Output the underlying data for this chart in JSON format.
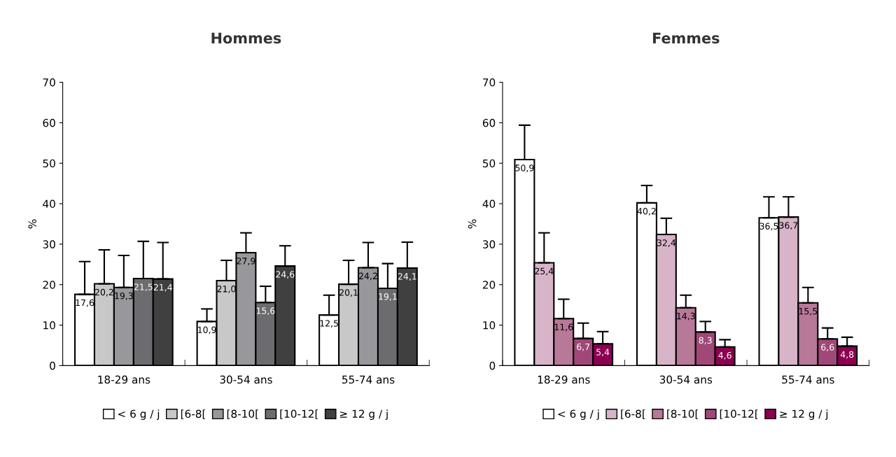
{
  "chart_data": [
    {
      "type": "bar",
      "title": "Hommes",
      "ylabel": "%",
      "categories": [
        "18-29 ans",
        "30-54 ans",
        "55-74 ans"
      ],
      "ylim": [
        0,
        70
      ],
      "yticks": [
        0,
        10,
        20,
        30,
        40,
        50,
        60,
        70
      ],
      "grid": false,
      "legend": "bottom",
      "series": [
        {
          "name": "< 6 g / j",
          "color": "#ffffff",
          "values": [
            17.6,
            10.9,
            12.5
          ],
          "errors": [
            [
              17.6,
              25.7
            ],
            [
              10.9,
              14.0
            ],
            [
              12.5,
              17.4
            ]
          ],
          "value_labels": [
            "17,6",
            "10,9",
            "12,5"
          ]
        },
        {
          "name": "[6-8[",
          "color": "#c8c8c8",
          "values": [
            20.2,
            21.0,
            20.1
          ],
          "errors": [
            [
              20.2,
              28.6
            ],
            [
              21.0,
              26.0
            ],
            [
              20.1,
              26.0
            ]
          ],
          "value_labels": [
            "20,2",
            "21,0",
            "20,1"
          ]
        },
        {
          "name": "[8-10[",
          "color": "#98989c",
          "values": [
            19.3,
            27.9,
            24.2
          ],
          "errors": [
            [
              19.3,
              27.2
            ],
            [
              27.9,
              32.8
            ],
            [
              24.2,
              30.4
            ]
          ],
          "value_labels": [
            "19,3",
            "27,9",
            "24,2"
          ]
        },
        {
          "name": "[10-12[",
          "color": "#6c6c70",
          "values": [
            21.5,
            15.6,
            19.1
          ],
          "errors": [
            [
              21.5,
              30.7
            ],
            [
              15.6,
              19.6
            ],
            [
              19.1,
              25.2
            ]
          ],
          "value_labels": [
            "21,5",
            "15,6",
            "19,1"
          ]
        },
        {
          "name": "≥ 12 g / j",
          "color": "#404040",
          "values": [
            21.4,
            24.6,
            24.1
          ],
          "errors": [
            [
              21.4,
              30.4
            ],
            [
              24.6,
              29.6
            ],
            [
              24.1,
              30.5
            ]
          ],
          "value_labels": [
            "21,4",
            "24,6",
            "24,1"
          ]
        }
      ]
    },
    {
      "type": "bar",
      "title": "Femmes",
      "ylabel": "%",
      "categories": [
        "18-29 ans",
        "30-54 ans",
        "55-74 ans"
      ],
      "ylim": [
        0,
        70
      ],
      "yticks": [
        0,
        10,
        20,
        30,
        40,
        50,
        60,
        70
      ],
      "grid": false,
      "legend": "bottom",
      "series": [
        {
          "name": "< 6 g / j",
          "color": "#ffffff",
          "values": [
            50.9,
            40.2,
            36.5
          ],
          "errors": [
            [
              50.9,
              59.4
            ],
            [
              40.2,
              44.5
            ],
            [
              36.5,
              41.7
            ]
          ],
          "value_labels": [
            "50,9",
            "40,2",
            "36,5"
          ]
        },
        {
          "name": "[6-8[",
          "color": "#d8b4c8",
          "values": [
            25.4,
            32.4,
            36.7
          ],
          "errors": [
            [
              25.4,
              32.8
            ],
            [
              32.4,
              36.4
            ],
            [
              36.7,
              41.7
            ]
          ],
          "value_labels": [
            "25,4",
            "32,4",
            "36,7"
          ]
        },
        {
          "name": "[8-10[",
          "color": "#b87898",
          "values": [
            11.6,
            14.3,
            15.5
          ],
          "errors": [
            [
              11.6,
              16.4
            ],
            [
              14.3,
              17.4
            ],
            [
              15.5,
              19.3
            ]
          ],
          "value_labels": [
            "11,6",
            "14,3",
            "15,5"
          ]
        },
        {
          "name": "[10-12[",
          "color": "#a04878",
          "values": [
            6.7,
            8.3,
            6.6
          ],
          "errors": [
            [
              6.7,
              10.5
            ],
            [
              8.3,
              10.9
            ],
            [
              6.6,
              9.3
            ]
          ],
          "value_labels": [
            "6,7",
            "8,3",
            "6,6"
          ]
        },
        {
          "name": "≥ 12 g / j",
          "color": "#8c0050",
          "values": [
            5.4,
            4.6,
            4.8
          ],
          "errors": [
            [
              5.4,
              8.4
            ],
            [
              4.6,
              6.4
            ],
            [
              4.8,
              7.0
            ]
          ],
          "value_labels": [
            "5,4",
            "4,6",
            "4,8"
          ]
        }
      ]
    }
  ]
}
